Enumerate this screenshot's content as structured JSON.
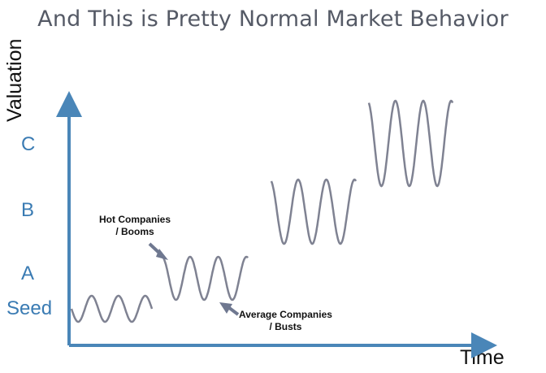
{
  "title": "And This is Pretty Normal Market Behavior",
  "axes": {
    "y_label": "Valuation",
    "x_label": "Time"
  },
  "levels": [
    "Seed",
    "A",
    "B",
    "C"
  ],
  "annotations": {
    "hot": {
      "line1": "Hot Companies",
      "line2": "/ Booms"
    },
    "average": {
      "line1": "Average Companies",
      "line2": "/ Busts"
    }
  },
  "stages": [
    {
      "name": "Seed",
      "cycles": 3
    },
    {
      "name": "A",
      "cycles": 3
    },
    {
      "name": "B",
      "cycles": 3
    },
    {
      "name": "C",
      "cycles": 3
    }
  ],
  "colors": {
    "axis": "#4a86b8",
    "level_text": "#3a7bb3",
    "wave": "#7f8292",
    "annotation_arrow": "#6f7890",
    "title": "#555a66"
  }
}
